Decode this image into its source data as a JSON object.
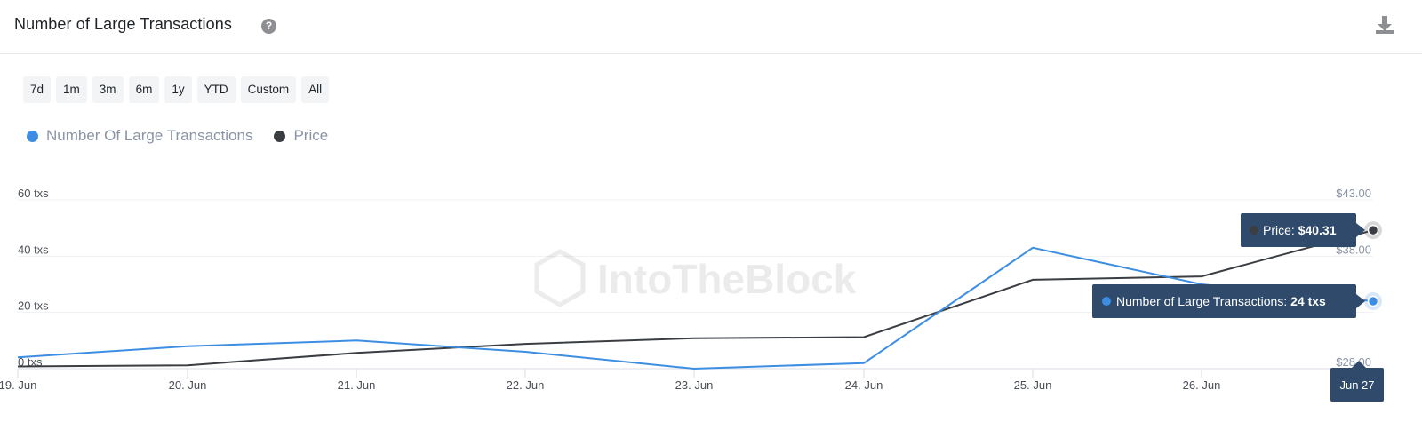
{
  "header": {
    "title": "Number of Large Transactions",
    "help_icon": "question-circle-icon",
    "download_icon": "download-icon"
  },
  "ranges": [
    "7d",
    "1m",
    "3m",
    "6m",
    "1y",
    "YTD",
    "Custom",
    "All"
  ],
  "watermark": "IntoTheBlock",
  "colors": {
    "transactions": "#3d8ee3",
    "price": "#3a3d42",
    "tooltip_bg": "#2f4a6b"
  },
  "chart_data": {
    "type": "line",
    "x": [
      "19. Jun",
      "20. Jun",
      "21. Jun",
      "22. Jun",
      "23. Jun",
      "24. Jun",
      "25. Jun",
      "26. Jun",
      "Jun 27"
    ],
    "xticks": [
      "19. Jun",
      "20. Jun",
      "21. Jun",
      "22. Jun",
      "23. Jun",
      "24. Jun",
      "25. Jun",
      "26. Jun"
    ],
    "series": [
      {
        "name": "Number Of Large Transactions",
        "axis": "left",
        "color": "#3d8ee3",
        "values": [
          4,
          8,
          10,
          6,
          0,
          2,
          43,
          30,
          24
        ]
      },
      {
        "name": "Price",
        "axis": "right",
        "color": "#3a3d42",
        "values": [
          28.2,
          28.3,
          29.4,
          30.2,
          30.7,
          30.8,
          35.9,
          36.2,
          40.31
        ]
      }
    ],
    "left_axis": {
      "ticks": [
        "0 txs",
        "20 txs",
        "40 txs",
        "60 txs"
      ],
      "range": [
        0,
        60
      ]
    },
    "right_axis": {
      "ticks": [
        "$28.00",
        "$38.00",
        "$43.00"
      ],
      "range": [
        28,
        43
      ]
    },
    "tooltip": {
      "price_label": "Price:",
      "price_value": "$40.31",
      "tx_label": "Number of Large Transactions:",
      "tx_value": "24 txs",
      "date": "Jun 27"
    },
    "grid": true
  }
}
